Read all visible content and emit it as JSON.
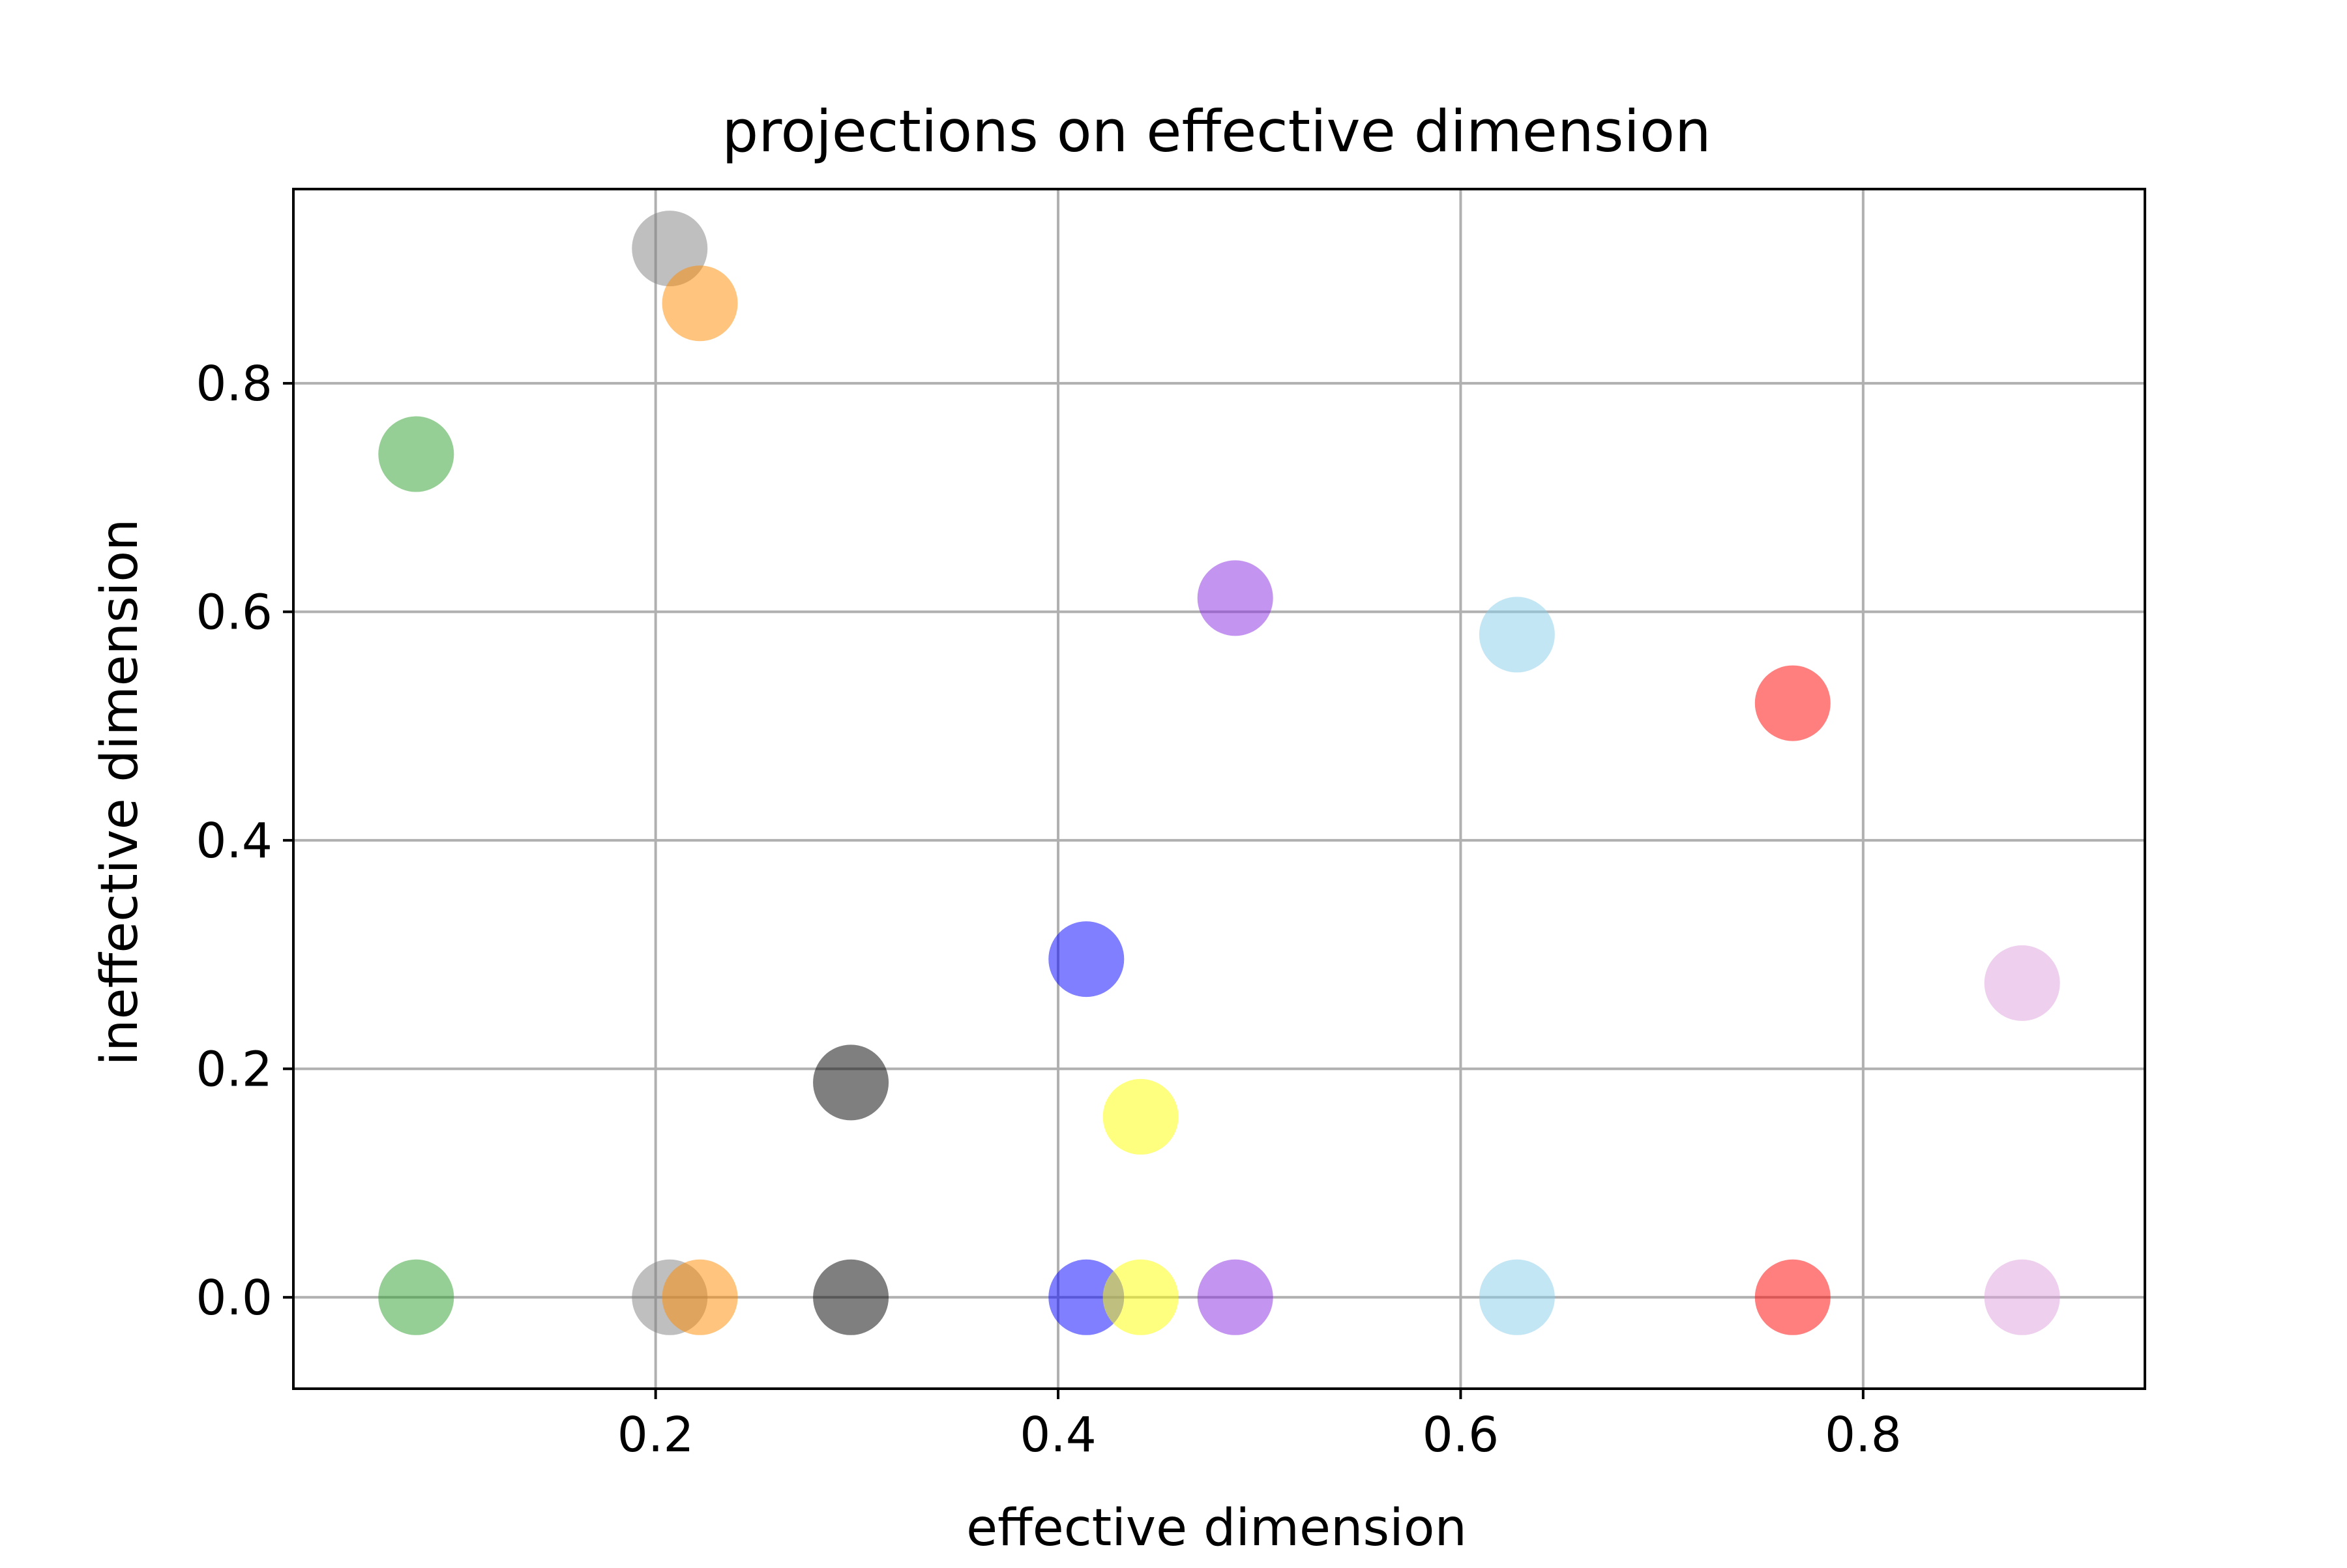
{
  "chart_data": {
    "type": "scatter",
    "title": "projections on effective dimension",
    "xlabel": "effective dimension",
    "ylabel": "ineffective dimension",
    "xlim": [
      0.02,
      0.94
    ],
    "ylim": [
      -0.08,
      0.97
    ],
    "xticks": [
      0.2,
      0.4,
      0.6,
      0.8
    ],
    "xtick_labels": [
      "0.2",
      "0.4",
      "0.6",
      "0.8"
    ],
    "yticks": [
      0.0,
      0.2,
      0.4,
      0.6,
      0.8
    ],
    "ytick_labels": [
      "0.0",
      "0.2",
      "0.4",
      "0.6",
      "0.8"
    ],
    "grid": true,
    "marker_alpha": 0.5,
    "points": [
      {
        "x": 0.081,
        "y": 0.738,
        "color": "#2ca02c"
      },
      {
        "x": 0.081,
        "y": 0.0,
        "color": "#2ca02c"
      },
      {
        "x": 0.207,
        "y": 0.918,
        "color": "#808080"
      },
      {
        "x": 0.207,
        "y": 0.0,
        "color": "#808080"
      },
      {
        "x": 0.222,
        "y": 0.87,
        "color": "#ff8c00"
      },
      {
        "x": 0.222,
        "y": 0.0,
        "color": "#ff8c00"
      },
      {
        "x": 0.297,
        "y": 0.188,
        "color": "#000000"
      },
      {
        "x": 0.297,
        "y": 0.0,
        "color": "#000000"
      },
      {
        "x": 0.414,
        "y": 0.296,
        "color": "#0000ff"
      },
      {
        "x": 0.414,
        "y": 0.0,
        "color": "#0000ff"
      },
      {
        "x": 0.441,
        "y": 0.158,
        "color": "#ffff00"
      },
      {
        "x": 0.441,
        "y": 0.0,
        "color": "#ffff00"
      },
      {
        "x": 0.488,
        "y": 0.612,
        "color": "#8a2be2"
      },
      {
        "x": 0.488,
        "y": 0.0,
        "color": "#8a2be2"
      },
      {
        "x": 0.628,
        "y": 0.58,
        "color": "#87ceeb"
      },
      {
        "x": 0.628,
        "y": 0.0,
        "color": "#87ceeb"
      },
      {
        "x": 0.765,
        "y": 0.52,
        "color": "#ff0000"
      },
      {
        "x": 0.765,
        "y": 0.0,
        "color": "#ff0000"
      },
      {
        "x": 0.879,
        "y": 0.275,
        "color": "#dda0dd"
      },
      {
        "x": 0.879,
        "y": 0.0,
        "color": "#dda0dd"
      }
    ]
  }
}
